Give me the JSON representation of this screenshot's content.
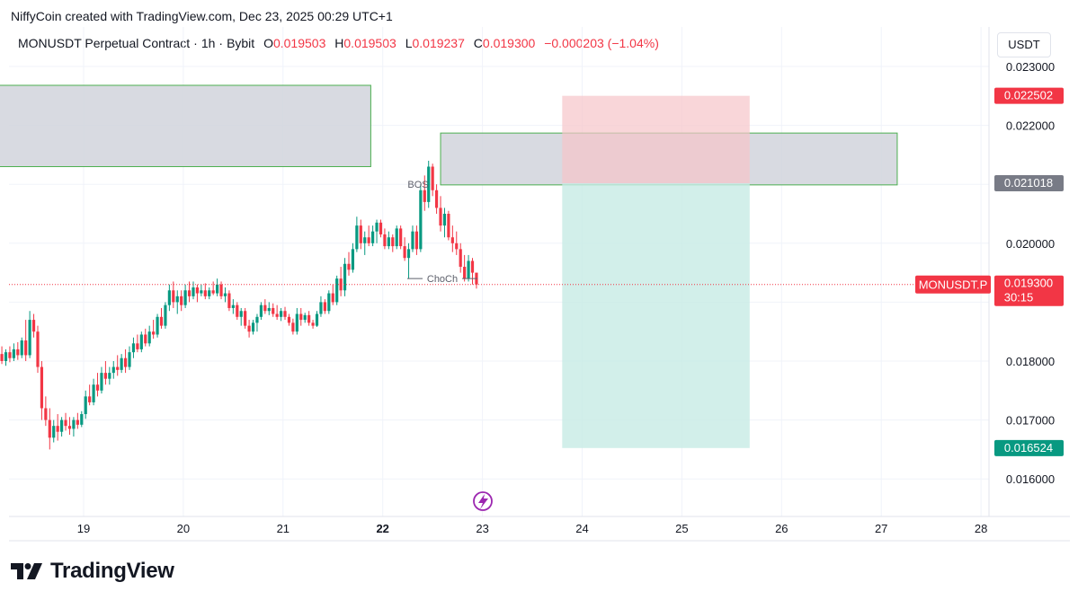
{
  "caption": "NiffyCoin created with TradingView.com, Dec 23, 2025 00:29 UTC+1",
  "legend": {
    "symbol": "MONUSDT Perpetual Contract",
    "interval": "1h",
    "exchange": "Bybit",
    "open_label": "O",
    "open": "0.019503",
    "high_label": "H",
    "high": "0.019503",
    "low_label": "L",
    "low": "0.019237",
    "close_label": "C",
    "close": "0.019300",
    "change": "−0.000203 (−1.04%)"
  },
  "currency_label": "USDT",
  "brand": {
    "name": "TradingView",
    "logo_icon": "tradingview-logo-icon"
  },
  "colors": {
    "up": "#089981",
    "down": "#f23645",
    "grid": "#f0f3fa",
    "zone_fill": "#d1d4dc",
    "zone_border": "#4caf50",
    "stop_fill": "#f7c5c9",
    "target_fill": "#c7ebe5"
  },
  "chart_data": {
    "type": "candlestick",
    "x_ticks": [
      "19",
      "20",
      "21",
      "22",
      "23",
      "24",
      "25",
      "26",
      "27",
      "28"
    ],
    "x_tick_bold": "22",
    "y_ticks": [
      "0.023000",
      "0.022000",
      "0.020000",
      "0.018000",
      "0.017000",
      "0.016000"
    ],
    "y_range": [
      0.0153,
      0.0236
    ],
    "current_price_label": "MONUSDT.P",
    "price_labels": [
      {
        "value": "0.022502",
        "kind": "stop"
      },
      {
        "value": "0.021018",
        "kind": "entry"
      },
      {
        "value": "0.019300",
        "kind": "last",
        "countdown": "30:15"
      },
      {
        "value": "0.016524",
        "kind": "target"
      }
    ],
    "annotations": [
      {
        "text": "BOS",
        "price": 0.021
      },
      {
        "text": "ChoCh",
        "price": 0.0194
      }
    ],
    "zones": [
      {
        "name": "supply-zone-left",
        "from_day": 18.1,
        "to_day": 21.88,
        "top": 0.02268,
        "bottom": 0.0213
      },
      {
        "name": "supply-zone-right",
        "from_day": 22.58,
        "to_day": 27.16,
        "top": 0.02187,
        "bottom": 0.02099
      }
    ],
    "position": {
      "from_day": 23.8,
      "to_day": 25.68,
      "stop": 0.022502,
      "entry": 0.021018,
      "target": 0.016524
    },
    "candles": [
      {
        "d": 18.1,
        "o": 0.0182,
        "h": 0.01845,
        "l": 0.0179,
        "c": 0.01805
      },
      {
        "d": 18.14,
        "o": 0.01805,
        "h": 0.0183,
        "l": 0.01795,
        "c": 0.01812
      },
      {
        "d": 18.18,
        "o": 0.01812,
        "h": 0.01825,
        "l": 0.01795,
        "c": 0.018
      },
      {
        "d": 18.22,
        "o": 0.018,
        "h": 0.0182,
        "l": 0.01792,
        "c": 0.01815
      },
      {
        "d": 18.26,
        "o": 0.01815,
        "h": 0.01825,
        "l": 0.01798,
        "c": 0.01805
      },
      {
        "d": 18.3,
        "o": 0.01805,
        "h": 0.0183,
        "l": 0.018,
        "c": 0.0182
      },
      {
        "d": 18.34,
        "o": 0.0182,
        "h": 0.01832,
        "l": 0.01802,
        "c": 0.0181
      },
      {
        "d": 18.38,
        "o": 0.0181,
        "h": 0.0184,
        "l": 0.01805,
        "c": 0.01835
      },
      {
        "d": 18.42,
        "o": 0.01835,
        "h": 0.0187,
        "l": 0.018,
        "c": 0.0181
      },
      {
        "d": 18.46,
        "o": 0.0181,
        "h": 0.01885,
        "l": 0.01805,
        "c": 0.0187
      },
      {
        "d": 18.5,
        "o": 0.0187,
        "h": 0.0188,
        "l": 0.0184,
        "c": 0.0185
      },
      {
        "d": 18.54,
        "o": 0.0185,
        "h": 0.0186,
        "l": 0.0178,
        "c": 0.0179
      },
      {
        "d": 18.58,
        "o": 0.0179,
        "h": 0.018,
        "l": 0.017,
        "c": 0.0172
      },
      {
        "d": 18.62,
        "o": 0.0172,
        "h": 0.0174,
        "l": 0.0169,
        "c": 0.017
      },
      {
        "d": 18.66,
        "o": 0.017,
        "h": 0.0172,
        "l": 0.0165,
        "c": 0.0167
      },
      {
        "d": 18.7,
        "o": 0.0167,
        "h": 0.017,
        "l": 0.01662,
        "c": 0.0169
      },
      {
        "d": 18.74,
        "o": 0.0169,
        "h": 0.0171,
        "l": 0.01665,
        "c": 0.0168
      },
      {
        "d": 18.78,
        "o": 0.0168,
        "h": 0.01705,
        "l": 0.01672,
        "c": 0.017
      },
      {
        "d": 18.82,
        "o": 0.017,
        "h": 0.01712,
        "l": 0.01682,
        "c": 0.0169
      },
      {
        "d": 18.86,
        "o": 0.0169,
        "h": 0.01705,
        "l": 0.01675,
        "c": 0.01685
      },
      {
        "d": 18.9,
        "o": 0.01685,
        "h": 0.01705,
        "l": 0.01672,
        "c": 0.017
      },
      {
        "d": 18.94,
        "o": 0.017,
        "h": 0.01712,
        "l": 0.01685,
        "c": 0.01692
      },
      {
        "d": 18.98,
        "o": 0.01692,
        "h": 0.01715,
        "l": 0.01688,
        "c": 0.0171
      },
      {
        "d": 19.02,
        "o": 0.0171,
        "h": 0.0175,
        "l": 0.01702,
        "c": 0.0174
      },
      {
        "d": 19.06,
        "o": 0.0174,
        "h": 0.0176,
        "l": 0.01725,
        "c": 0.0173
      },
      {
        "d": 19.1,
        "o": 0.0173,
        "h": 0.0177,
        "l": 0.01725,
        "c": 0.0176
      },
      {
        "d": 19.14,
        "o": 0.0176,
        "h": 0.0178,
        "l": 0.0174,
        "c": 0.0175
      },
      {
        "d": 19.18,
        "o": 0.0175,
        "h": 0.0179,
        "l": 0.01745,
        "c": 0.0178
      },
      {
        "d": 19.22,
        "o": 0.0178,
        "h": 0.018,
        "l": 0.0176,
        "c": 0.0177
      },
      {
        "d": 19.26,
        "o": 0.0177,
        "h": 0.0179,
        "l": 0.0176,
        "c": 0.0178
      },
      {
        "d": 19.3,
        "o": 0.0178,
        "h": 0.018,
        "l": 0.0177,
        "c": 0.0179
      },
      {
        "d": 19.34,
        "o": 0.0179,
        "h": 0.0181,
        "l": 0.01775,
        "c": 0.01785
      },
      {
        "d": 19.38,
        "o": 0.01785,
        "h": 0.01812,
        "l": 0.0178,
        "c": 0.01805
      },
      {
        "d": 19.42,
        "o": 0.01805,
        "h": 0.0182,
        "l": 0.0178,
        "c": 0.0179
      },
      {
        "d": 19.46,
        "o": 0.0179,
        "h": 0.01825,
        "l": 0.01785,
        "c": 0.01815
      },
      {
        "d": 19.5,
        "o": 0.01815,
        "h": 0.0184,
        "l": 0.01805,
        "c": 0.0183
      },
      {
        "d": 19.54,
        "o": 0.0183,
        "h": 0.01845,
        "l": 0.01815,
        "c": 0.0182
      },
      {
        "d": 19.58,
        "o": 0.0182,
        "h": 0.0185,
        "l": 0.01815,
        "c": 0.01845
      },
      {
        "d": 19.62,
        "o": 0.01845,
        "h": 0.01855,
        "l": 0.01825,
        "c": 0.0183
      },
      {
        "d": 19.66,
        "o": 0.0183,
        "h": 0.0186,
        "l": 0.01825,
        "c": 0.0185
      },
      {
        "d": 19.7,
        "o": 0.0185,
        "h": 0.0187,
        "l": 0.01838,
        "c": 0.01845
      },
      {
        "d": 19.74,
        "o": 0.01845,
        "h": 0.0188,
        "l": 0.0184,
        "c": 0.01875
      },
      {
        "d": 19.78,
        "o": 0.01875,
        "h": 0.0189,
        "l": 0.01855,
        "c": 0.0186
      },
      {
        "d": 19.82,
        "o": 0.0186,
        "h": 0.019,
        "l": 0.01855,
        "c": 0.01895
      },
      {
        "d": 19.86,
        "o": 0.01895,
        "h": 0.0193,
        "l": 0.01885,
        "c": 0.0192
      },
      {
        "d": 19.9,
        "o": 0.0192,
        "h": 0.01935,
        "l": 0.0189,
        "c": 0.019
      },
      {
        "d": 19.94,
        "o": 0.019,
        "h": 0.0192,
        "l": 0.0188,
        "c": 0.0191
      },
      {
        "d": 19.98,
        "o": 0.0191,
        "h": 0.0192,
        "l": 0.01885,
        "c": 0.01895
      },
      {
        "d": 20.02,
        "o": 0.01895,
        "h": 0.0193,
        "l": 0.0189,
        "c": 0.0192
      },
      {
        "d": 20.06,
        "o": 0.0192,
        "h": 0.01935,
        "l": 0.019,
        "c": 0.0191
      },
      {
        "d": 20.1,
        "o": 0.0191,
        "h": 0.01935,
        "l": 0.01905,
        "c": 0.01925
      },
      {
        "d": 20.14,
        "o": 0.01925,
        "h": 0.0193,
        "l": 0.019,
        "c": 0.01915
      },
      {
        "d": 20.18,
        "o": 0.01915,
        "h": 0.0193,
        "l": 0.0191,
        "c": 0.0192
      },
      {
        "d": 20.22,
        "o": 0.0192,
        "h": 0.01932,
        "l": 0.01905,
        "c": 0.0191
      },
      {
        "d": 20.26,
        "o": 0.0191,
        "h": 0.01925,
        "l": 0.01905,
        "c": 0.0192
      },
      {
        "d": 20.3,
        "o": 0.0192,
        "h": 0.01935,
        "l": 0.01912,
        "c": 0.01915
      },
      {
        "d": 20.34,
        "o": 0.01915,
        "h": 0.0194,
        "l": 0.0191,
        "c": 0.0193
      },
      {
        "d": 20.38,
        "o": 0.0193,
        "h": 0.01935,
        "l": 0.01905,
        "c": 0.0191
      },
      {
        "d": 20.42,
        "o": 0.0191,
        "h": 0.01925,
        "l": 0.019,
        "c": 0.01915
      },
      {
        "d": 20.46,
        "o": 0.01915,
        "h": 0.0192,
        "l": 0.01885,
        "c": 0.0189
      },
      {
        "d": 20.5,
        "o": 0.0189,
        "h": 0.01905,
        "l": 0.0188,
        "c": 0.01895
      },
      {
        "d": 20.54,
        "o": 0.01895,
        "h": 0.019,
        "l": 0.0187,
        "c": 0.01875
      },
      {
        "d": 20.58,
        "o": 0.01875,
        "h": 0.0189,
        "l": 0.0186,
        "c": 0.01885
      },
      {
        "d": 20.62,
        "o": 0.01885,
        "h": 0.0189,
        "l": 0.01855,
        "c": 0.0186
      },
      {
        "d": 20.66,
        "o": 0.0186,
        "h": 0.0187,
        "l": 0.0184,
        "c": 0.0185
      },
      {
        "d": 20.7,
        "o": 0.0185,
        "h": 0.0187,
        "l": 0.01845,
        "c": 0.01865
      },
      {
        "d": 20.74,
        "o": 0.01865,
        "h": 0.0188,
        "l": 0.0185,
        "c": 0.01875
      },
      {
        "d": 20.78,
        "o": 0.01875,
        "h": 0.019,
        "l": 0.0187,
        "c": 0.01895
      },
      {
        "d": 20.82,
        "o": 0.01895,
        "h": 0.01905,
        "l": 0.0188,
        "c": 0.01885
      },
      {
        "d": 20.86,
        "o": 0.01885,
        "h": 0.019,
        "l": 0.01878,
        "c": 0.0189
      },
      {
        "d": 20.9,
        "o": 0.0189,
        "h": 0.01898,
        "l": 0.01875,
        "c": 0.0188
      },
      {
        "d": 20.94,
        "o": 0.0188,
        "h": 0.01895,
        "l": 0.0187,
        "c": 0.01875
      },
      {
        "d": 20.98,
        "o": 0.01875,
        "h": 0.0189,
        "l": 0.01868,
        "c": 0.01885
      },
      {
        "d": 21.02,
        "o": 0.01885,
        "h": 0.01892,
        "l": 0.0187,
        "c": 0.01875
      },
      {
        "d": 21.06,
        "o": 0.01875,
        "h": 0.0188,
        "l": 0.0186,
        "c": 0.01865
      },
      {
        "d": 21.1,
        "o": 0.01865,
        "h": 0.01872,
        "l": 0.01845,
        "c": 0.0185
      },
      {
        "d": 21.14,
        "o": 0.0185,
        "h": 0.0189,
        "l": 0.01845,
        "c": 0.0188
      },
      {
        "d": 21.18,
        "o": 0.0188,
        "h": 0.0189,
        "l": 0.0186,
        "c": 0.0187
      },
      {
        "d": 21.22,
        "o": 0.0187,
        "h": 0.01882,
        "l": 0.01865,
        "c": 0.01878
      },
      {
        "d": 21.26,
        "o": 0.01878,
        "h": 0.01885,
        "l": 0.0186,
        "c": 0.01865
      },
      {
        "d": 21.3,
        "o": 0.01865,
        "h": 0.0187,
        "l": 0.01855,
        "c": 0.0186
      },
      {
        "d": 21.34,
        "o": 0.0186,
        "h": 0.01885,
        "l": 0.01858,
        "c": 0.0188
      },
      {
        "d": 21.38,
        "o": 0.0188,
        "h": 0.0191,
        "l": 0.01875,
        "c": 0.019
      },
      {
        "d": 21.42,
        "o": 0.019,
        "h": 0.01905,
        "l": 0.0188,
        "c": 0.01885
      },
      {
        "d": 21.46,
        "o": 0.01885,
        "h": 0.0192,
        "l": 0.0188,
        "c": 0.01915
      },
      {
        "d": 21.5,
        "o": 0.01915,
        "h": 0.0193,
        "l": 0.01895,
        "c": 0.019
      },
      {
        "d": 21.54,
        "o": 0.019,
        "h": 0.01945,
        "l": 0.01895,
        "c": 0.0194
      },
      {
        "d": 21.58,
        "o": 0.0194,
        "h": 0.0196,
        "l": 0.0191,
        "c": 0.0192
      },
      {
        "d": 21.62,
        "o": 0.0192,
        "h": 0.01975,
        "l": 0.0191,
        "c": 0.01965
      },
      {
        "d": 21.66,
        "o": 0.01965,
        "h": 0.01985,
        "l": 0.01945,
        "c": 0.01955
      },
      {
        "d": 21.7,
        "o": 0.01955,
        "h": 0.02,
        "l": 0.0195,
        "c": 0.0199
      },
      {
        "d": 21.74,
        "o": 0.0199,
        "h": 0.02045,
        "l": 0.01985,
        "c": 0.0203
      },
      {
        "d": 21.78,
        "o": 0.0203,
        "h": 0.0204,
        "l": 0.0199,
        "c": 0.02
      },
      {
        "d": 21.82,
        "o": 0.02,
        "h": 0.0202,
        "l": 0.0198,
        "c": 0.0201
      },
      {
        "d": 21.86,
        "o": 0.0201,
        "h": 0.0203,
        "l": 0.01995,
        "c": 0.02
      },
      {
        "d": 21.9,
        "o": 0.02,
        "h": 0.0203,
        "l": 0.01995,
        "c": 0.0202
      },
      {
        "d": 21.94,
        "o": 0.0202,
        "h": 0.0204,
        "l": 0.02,
        "c": 0.02035
      },
      {
        "d": 21.98,
        "o": 0.02035,
        "h": 0.0204,
        "l": 0.0201,
        "c": 0.02015
      },
      {
        "d": 22.02,
        "o": 0.02015,
        "h": 0.02025,
        "l": 0.0199,
        "c": 0.01995
      },
      {
        "d": 22.06,
        "o": 0.01995,
        "h": 0.0202,
        "l": 0.0199,
        "c": 0.0201
      },
      {
        "d": 22.1,
        "o": 0.0201,
        "h": 0.02015,
        "l": 0.01985,
        "c": 0.01995
      },
      {
        "d": 22.14,
        "o": 0.01995,
        "h": 0.0203,
        "l": 0.0199,
        "c": 0.02025
      },
      {
        "d": 22.18,
        "o": 0.02025,
        "h": 0.0203,
        "l": 0.0199,
        "c": 0.01995
      },
      {
        "d": 22.22,
        "o": 0.01995,
        "h": 0.0201,
        "l": 0.0197,
        "c": 0.01975
      },
      {
        "d": 22.26,
        "o": 0.01975,
        "h": 0.02,
        "l": 0.0194,
        "c": 0.0199
      },
      {
        "d": 22.3,
        "o": 0.0199,
        "h": 0.0203,
        "l": 0.01985,
        "c": 0.0202
      },
      {
        "d": 22.34,
        "o": 0.0202,
        "h": 0.0203,
        "l": 0.0198,
        "c": 0.0199
      },
      {
        "d": 22.38,
        "o": 0.0199,
        "h": 0.021,
        "l": 0.01985,
        "c": 0.0209
      },
      {
        "d": 22.42,
        "o": 0.0209,
        "h": 0.02115,
        "l": 0.02055,
        "c": 0.0207
      },
      {
        "d": 22.46,
        "o": 0.0207,
        "h": 0.0214,
        "l": 0.0206,
        "c": 0.0213
      },
      {
        "d": 22.5,
        "o": 0.0213,
        "h": 0.02135,
        "l": 0.0208,
        "c": 0.0209
      },
      {
        "d": 22.54,
        "o": 0.0209,
        "h": 0.021,
        "l": 0.0205,
        "c": 0.0206
      },
      {
        "d": 22.58,
        "o": 0.0206,
        "h": 0.0208,
        "l": 0.0202,
        "c": 0.0203
      },
      {
        "d": 22.62,
        "o": 0.0203,
        "h": 0.0206,
        "l": 0.0201,
        "c": 0.0205
      },
      {
        "d": 22.66,
        "o": 0.0205,
        "h": 0.02055,
        "l": 0.02005,
        "c": 0.0201
      },
      {
        "d": 22.7,
        "o": 0.0201,
        "h": 0.0203,
        "l": 0.01985,
        "c": 0.02
      },
      {
        "d": 22.74,
        "o": 0.02,
        "h": 0.0202,
        "l": 0.0198,
        "c": 0.0199
      },
      {
        "d": 22.78,
        "o": 0.0199,
        "h": 0.02,
        "l": 0.0195,
        "c": 0.0196
      },
      {
        "d": 22.82,
        "o": 0.0196,
        "h": 0.0198,
        "l": 0.01935,
        "c": 0.0194
      },
      {
        "d": 22.86,
        "o": 0.0194,
        "h": 0.0198,
        "l": 0.01935,
        "c": 0.0197
      },
      {
        "d": 22.9,
        "o": 0.0197,
        "h": 0.01975,
        "l": 0.0193,
        "c": 0.0195
      },
      {
        "d": 22.94,
        "o": 0.0195,
        "h": 0.0195,
        "l": 0.01923,
        "c": 0.0193
      }
    ]
  }
}
